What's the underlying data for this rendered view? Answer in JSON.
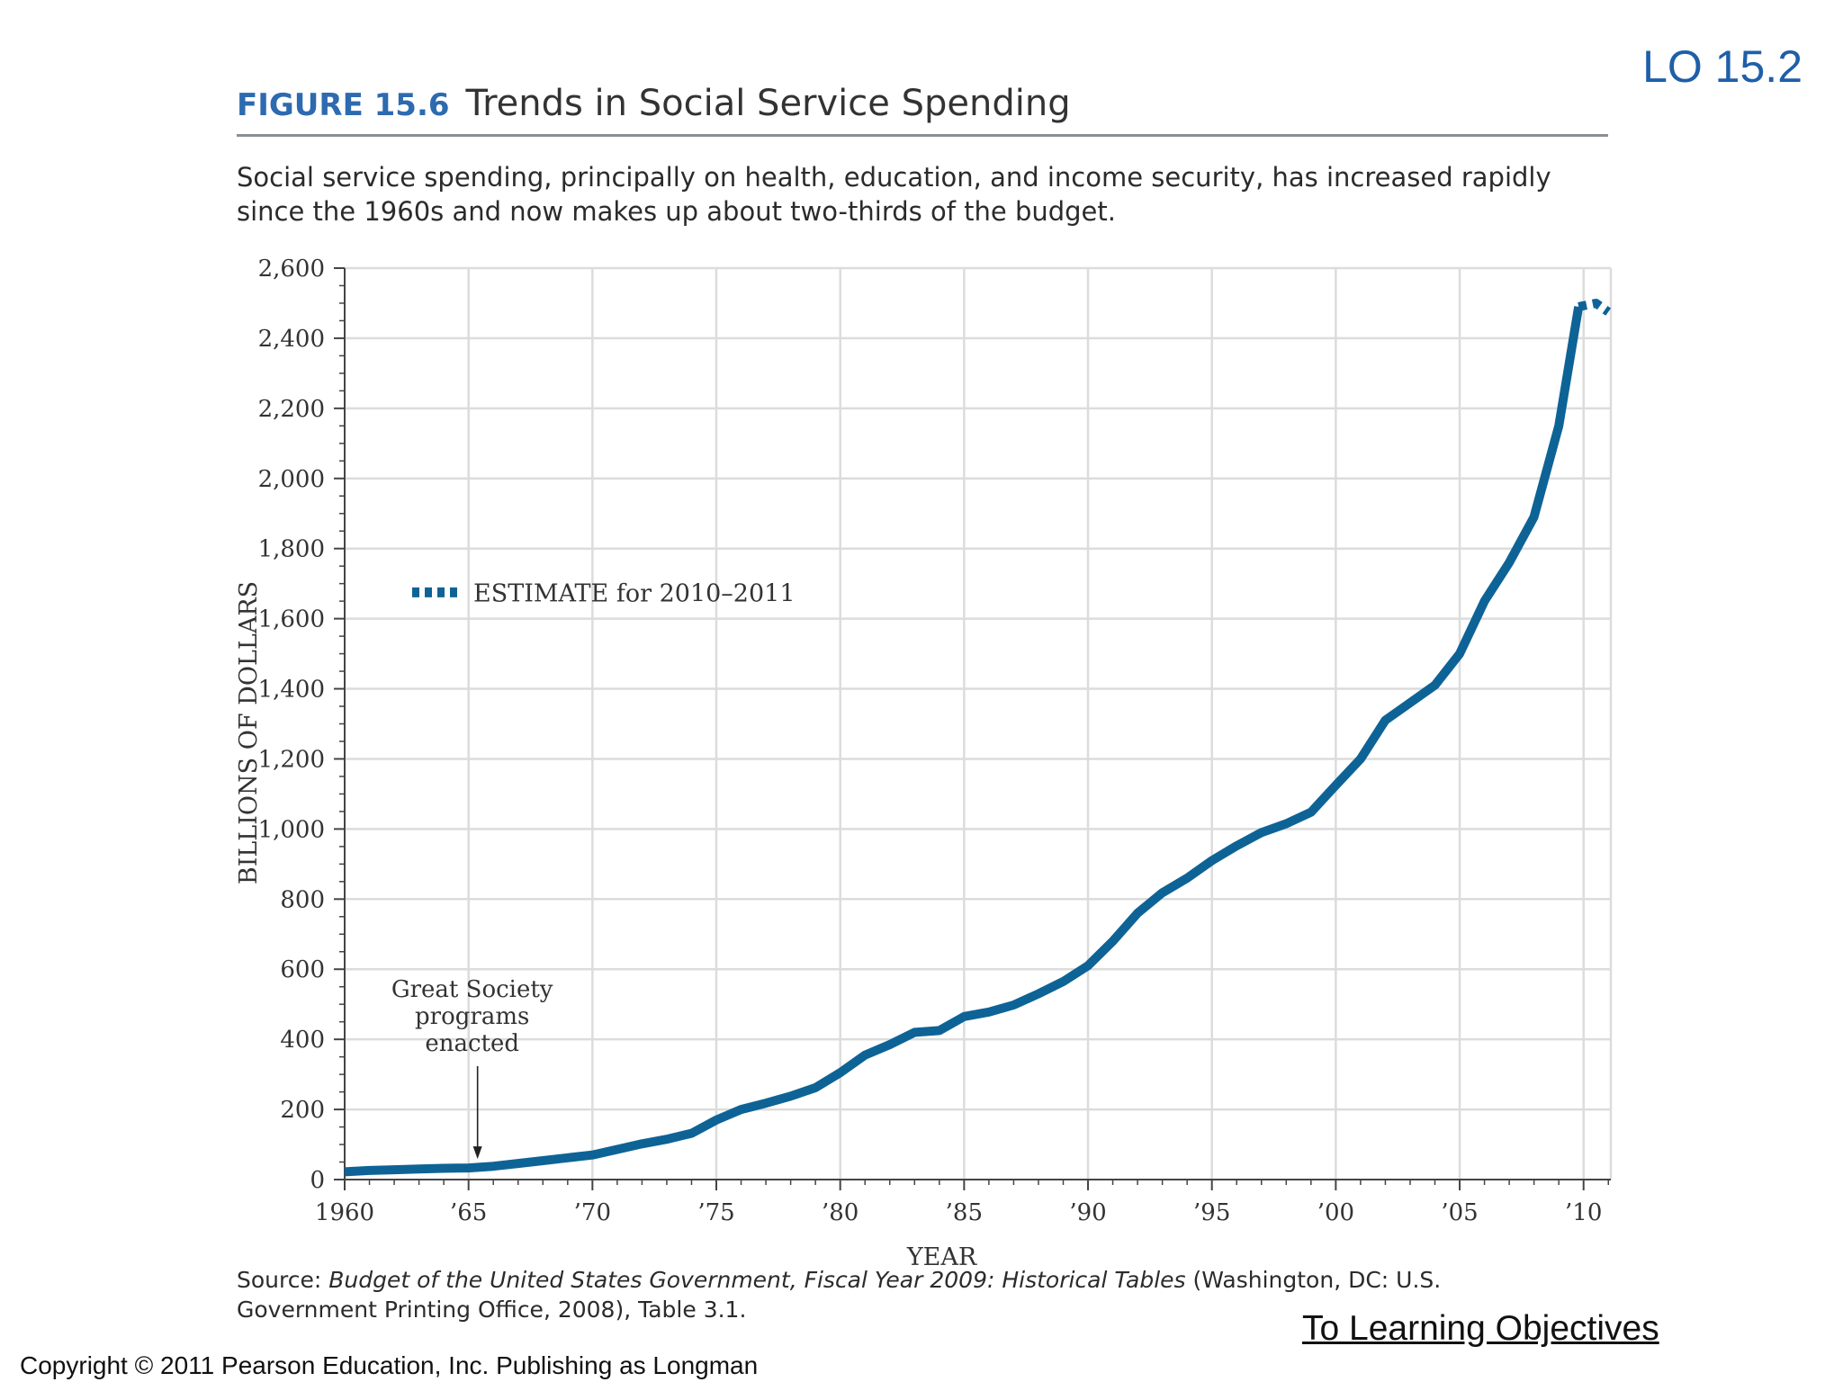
{
  "lo_label": "LO 15.2",
  "figure": {
    "number": "FIGURE 15.6",
    "title": "Trends in Social Service Spending",
    "caption": "Social service spending, principally on health, education, and income security, has increased rapidly since the 1960s and now makes up about two-thirds of the budget."
  },
  "colors": {
    "series": "#0e6396",
    "grid": "#dcdcdc",
    "axis": "#444444",
    "accent": "#1f5fa8"
  },
  "chart_data": {
    "type": "line",
    "title": "Trends in Social Service Spending",
    "xlabel": "YEAR",
    "ylabel": "BILLIONS OF DOLLARS",
    "xlim": [
      1960,
      2011
    ],
    "ylim": [
      0,
      2600
    ],
    "x_ticks": [
      1960,
      1965,
      1970,
      1975,
      1980,
      1985,
      1990,
      1995,
      2000,
      2005,
      2010
    ],
    "x_tick_labels": [
      "1960",
      "’65",
      "’70",
      "’75",
      "’80",
      "’85",
      "’90",
      "’95",
      "’00",
      "’05",
      "’10"
    ],
    "y_ticks": [
      0,
      200,
      400,
      600,
      800,
      1000,
      1200,
      1400,
      1600,
      1800,
      2000,
      2200,
      2400,
      2600
    ],
    "y_tick_labels": [
      "0",
      "200",
      "400",
      "600",
      "800",
      "1,000",
      "1,200",
      "1,400",
      "1,600",
      "1,800",
      "2,000",
      "2,200",
      "2,400",
      "2,600"
    ],
    "grid": true,
    "series": [
      {
        "name": "Social service spending",
        "style": "solid",
        "x": [
          1960,
          1961,
          1962,
          1963,
          1964,
          1965,
          1966,
          1967,
          1968,
          1969,
          1970,
          1971,
          1972,
          1973,
          1974,
          1975,
          1976,
          1977,
          1978,
          1979,
          1980,
          1981,
          1982,
          1983,
          1984,
          1985,
          1986,
          1987,
          1988,
          1989,
          1990,
          1991,
          1992,
          1993,
          1994,
          1995,
          1996,
          1997,
          1998,
          1999,
          2000,
          2001,
          2002,
          2003,
          2004,
          2005,
          2006,
          2007,
          2008,
          2009,
          2009.8
        ],
        "values": [
          22,
          26,
          28,
          30,
          32,
          33,
          38,
          46,
          54,
          62,
          70,
          86,
          102,
          115,
          132,
          170,
          200,
          218,
          238,
          262,
          305,
          355,
          385,
          420,
          425,
          465,
          478,
          498,
          530,
          565,
          610,
          680,
          760,
          818,
          860,
          910,
          952,
          990,
          1015,
          1048,
          1125,
          1200,
          1310,
          1360,
          1410,
          1500,
          1650,
          1760,
          1890,
          2150,
          2490
        ]
      },
      {
        "name": "ESTIMATE for 2010–2011",
        "style": "dotted",
        "x": [
          2009.8,
          2010.5,
          2011
        ],
        "values": [
          2490,
          2500,
          2475
        ]
      }
    ],
    "legend": {
      "position": "upper-left",
      "entries": [
        "ESTIMATE for 2010–2011"
      ]
    },
    "annotations": [
      {
        "text_lines": [
          "Great Society",
          "programs",
          "enacted"
        ],
        "x": 1965,
        "y": 33
      }
    ]
  },
  "source": {
    "prefix": "Source: ",
    "title": "Budget of the United States Government, Fiscal Year 2009: Historical Tables",
    "rest": " (Washington, DC: U.S. Government Printing Office, 2008), Table 3.1."
  },
  "to_learning_objectives": "To Learning Objectives",
  "copyright": "Copyright © 2011 Pearson Education, Inc. Publishing as Longman"
}
